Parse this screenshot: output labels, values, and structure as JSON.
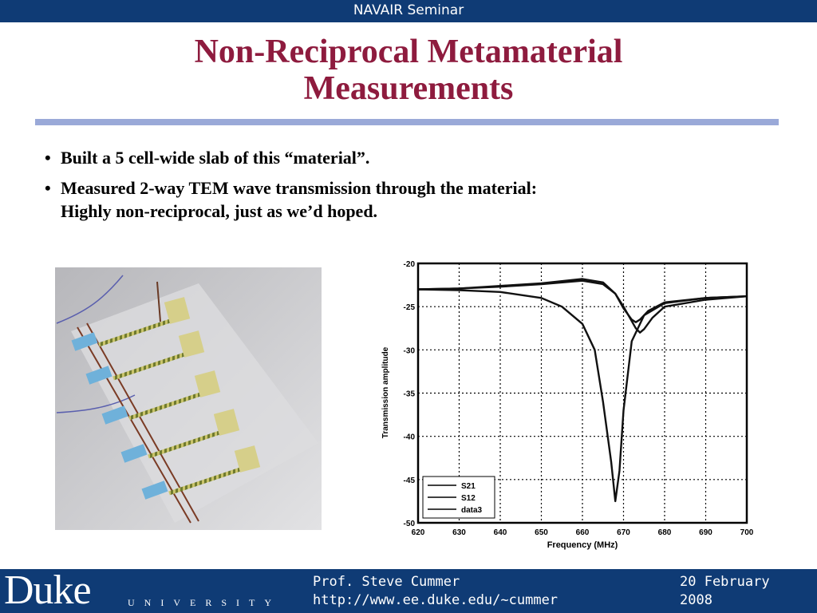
{
  "header": {
    "seminar": "NAVAIR Seminar"
  },
  "slide": {
    "title_line1": "Non-Reciprocal Metamaterial",
    "title_line2": "Measurements",
    "bullets": [
      {
        "marker": "•",
        "line1": "Built a 5 cell-wide slab of this “material”.",
        "line2": ""
      },
      {
        "marker": "•",
        "line1": "Measured 2-way TEM wave transmission through the material:",
        "line2": "Highly non-reciprocal, just as we’d hoped."
      }
    ]
  },
  "chart_data": {
    "type": "line",
    "xlabel": "Frequency (MHz)",
    "ylabel": "Transmission amplitude",
    "xlim": [
      620,
      700
    ],
    "ylim": [
      -50,
      -20
    ],
    "xticks": [
      620,
      630,
      640,
      650,
      660,
      670,
      680,
      690,
      700
    ],
    "yticks": [
      -20,
      -25,
      -30,
      -35,
      -40,
      -45,
      -50
    ],
    "grid": true,
    "legend_placement": "bottom-left",
    "series": [
      {
        "name": "S21",
        "x": [
          620,
          630,
          640,
          650,
          655,
          660,
          663,
          665,
          667,
          668,
          669,
          670,
          672,
          675,
          680,
          690,
          700
        ],
        "y": [
          -23,
          -23.1,
          -23.3,
          -24,
          -25,
          -27,
          -30,
          -36,
          -43,
          -47.5,
          -44,
          -37,
          -29,
          -26,
          -24.6,
          -24,
          -23.8
        ]
      },
      {
        "name": "S12",
        "x": [
          620,
          630,
          640,
          650,
          660,
          665,
          668,
          670,
          672,
          673,
          674,
          676,
          680,
          690,
          700
        ],
        "y": [
          -23,
          -22.9,
          -22.6,
          -22.3,
          -21.8,
          -22.2,
          -23.5,
          -25.2,
          -26.5,
          -26.8,
          -26.5,
          -25.5,
          -24.5,
          -24,
          -23.8
        ]
      },
      {
        "name": "data3",
        "x": [
          620,
          630,
          640,
          650,
          660,
          665,
          668,
          670,
          673,
          674,
          675,
          677,
          680,
          690,
          700
        ],
        "y": [
          -23,
          -22.9,
          -22.7,
          -22.4,
          -22,
          -22.4,
          -23.5,
          -25,
          -27.5,
          -28,
          -27.6,
          -26.3,
          -25,
          -24.2,
          -23.8
        ]
      }
    ]
  },
  "footer": {
    "logo": "Duke",
    "university": "UNIVERSITY",
    "presenter": "Prof. Steve Cummer",
    "url": "http://www.ee.duke.edu/~cummer",
    "date_line1": "20 February",
    "date_line2": "2008"
  },
  "colors": {
    "bar": "#0f3b75",
    "title": "#8e1b3e",
    "rule": "#9aa9d8"
  }
}
